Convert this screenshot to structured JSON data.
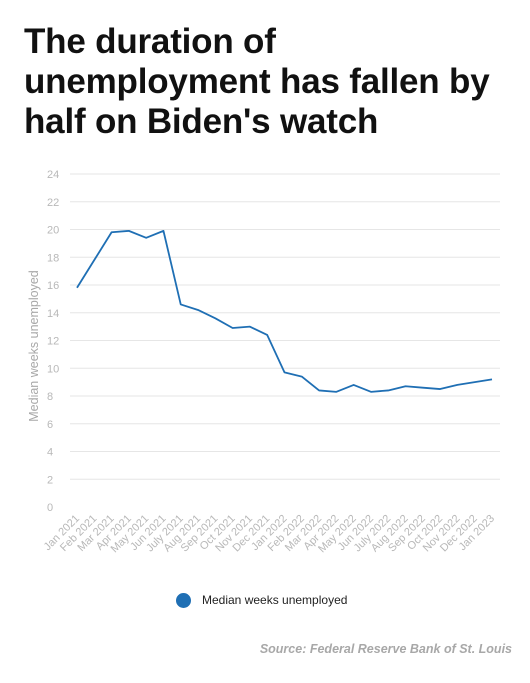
{
  "title": "The duration of unemployment has fallen by half on Biden's watch",
  "source": "Source: Federal Reserve Bank of St. Louis",
  "colors": {
    "series": "#1f6fb4",
    "grid": "#e6e6e6",
    "tick_label": "#b8b8b8",
    "axis_label": "#a8a8a8",
    "title": "#111111",
    "source": "#a8a8a8"
  },
  "chart_data": {
    "type": "line",
    "title": "The duration of unemployment has fallen by half on Biden's watch",
    "xlabel": "",
    "ylabel": "Median weeks unemployed",
    "ylim": [
      0,
      24
    ],
    "yticks": [
      0,
      2,
      4,
      6,
      8,
      10,
      12,
      14,
      16,
      18,
      20,
      22,
      24
    ],
    "grid": true,
    "legend": "bottom",
    "categories": [
      "Jan 2021",
      "Feb 2021",
      "Mar 2021",
      "Apr 2021",
      "May 2021",
      "Jun 2021",
      "July 2021",
      "Aug 2021",
      "Sep 2021",
      "Oct 2021",
      "Nov 2021",
      "Dec 2021",
      "Jan 2022",
      "Feb 2022",
      "Mar 2022",
      "Apr 2022",
      "May 2022",
      "Jun 2022",
      "July 2022",
      "Aug 2022",
      "Sep 2022",
      "Oct 2022",
      "Nov 2022",
      "Dec 2022",
      "Jan 2023"
    ],
    "series": [
      {
        "name": "Median weeks unemployed",
        "color": "#1f6fb4",
        "values": [
          15.8,
          17.8,
          19.8,
          19.9,
          19.4,
          19.9,
          14.6,
          14.2,
          13.6,
          12.9,
          13.0,
          12.4,
          9.7,
          9.4,
          8.4,
          8.3,
          8.8,
          8.3,
          8.4,
          8.7,
          8.6,
          8.5,
          8.8,
          9.0,
          9.2
        ]
      }
    ]
  }
}
